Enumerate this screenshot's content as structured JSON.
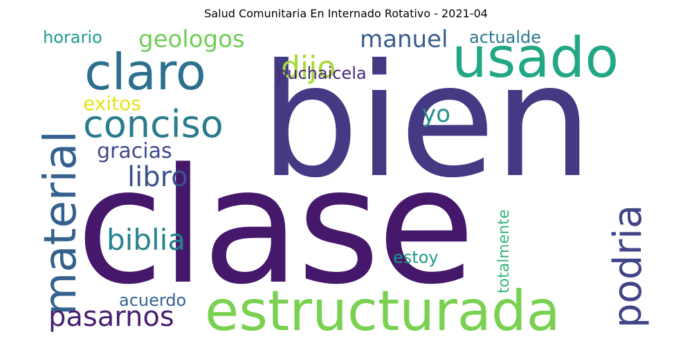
{
  "title": "Salud Comunitaria En Internado Rotativo - 2021-04",
  "words": [
    {
      "text": "bien",
      "color": "#443983"
    },
    {
      "text": "clase",
      "color": "#46186b"
    },
    {
      "text": "estructurada",
      "color": "#7ad151"
    },
    {
      "text": "material",
      "color": "#34618d"
    },
    {
      "text": "usado",
      "color": "#22a785"
    },
    {
      "text": "claro",
      "color": "#2d6f8e"
    },
    {
      "text": "conciso",
      "color": "#287c8e"
    },
    {
      "text": "podria",
      "color": "#414487"
    },
    {
      "text": "pasarnos",
      "color": "#481f70"
    },
    {
      "text": "biblia",
      "color": "#26828e"
    },
    {
      "text": "libro",
      "color": "#3b528b"
    },
    {
      "text": "dijo",
      "color": "#a5db36"
    },
    {
      "text": "geologos",
      "color": "#6ece58"
    },
    {
      "text": "manuel",
      "color": "#365c8d"
    },
    {
      "text": "gracias",
      "color": "#3e4a89"
    },
    {
      "text": "exitos",
      "color": "#e3e418"
    },
    {
      "text": "horario",
      "color": "#1f9a8a"
    },
    {
      "text": "actualde",
      "color": "#2a788e"
    },
    {
      "text": "puchaicela",
      "color": "#482878"
    },
    {
      "text": "yo",
      "color": "#20928c"
    },
    {
      "text": "estoy",
      "color": "#1e9b8a"
    },
    {
      "text": "acuerdo",
      "color": "#33628d"
    },
    {
      "text": "totalmente",
      "color": "#35b779"
    }
  ]
}
